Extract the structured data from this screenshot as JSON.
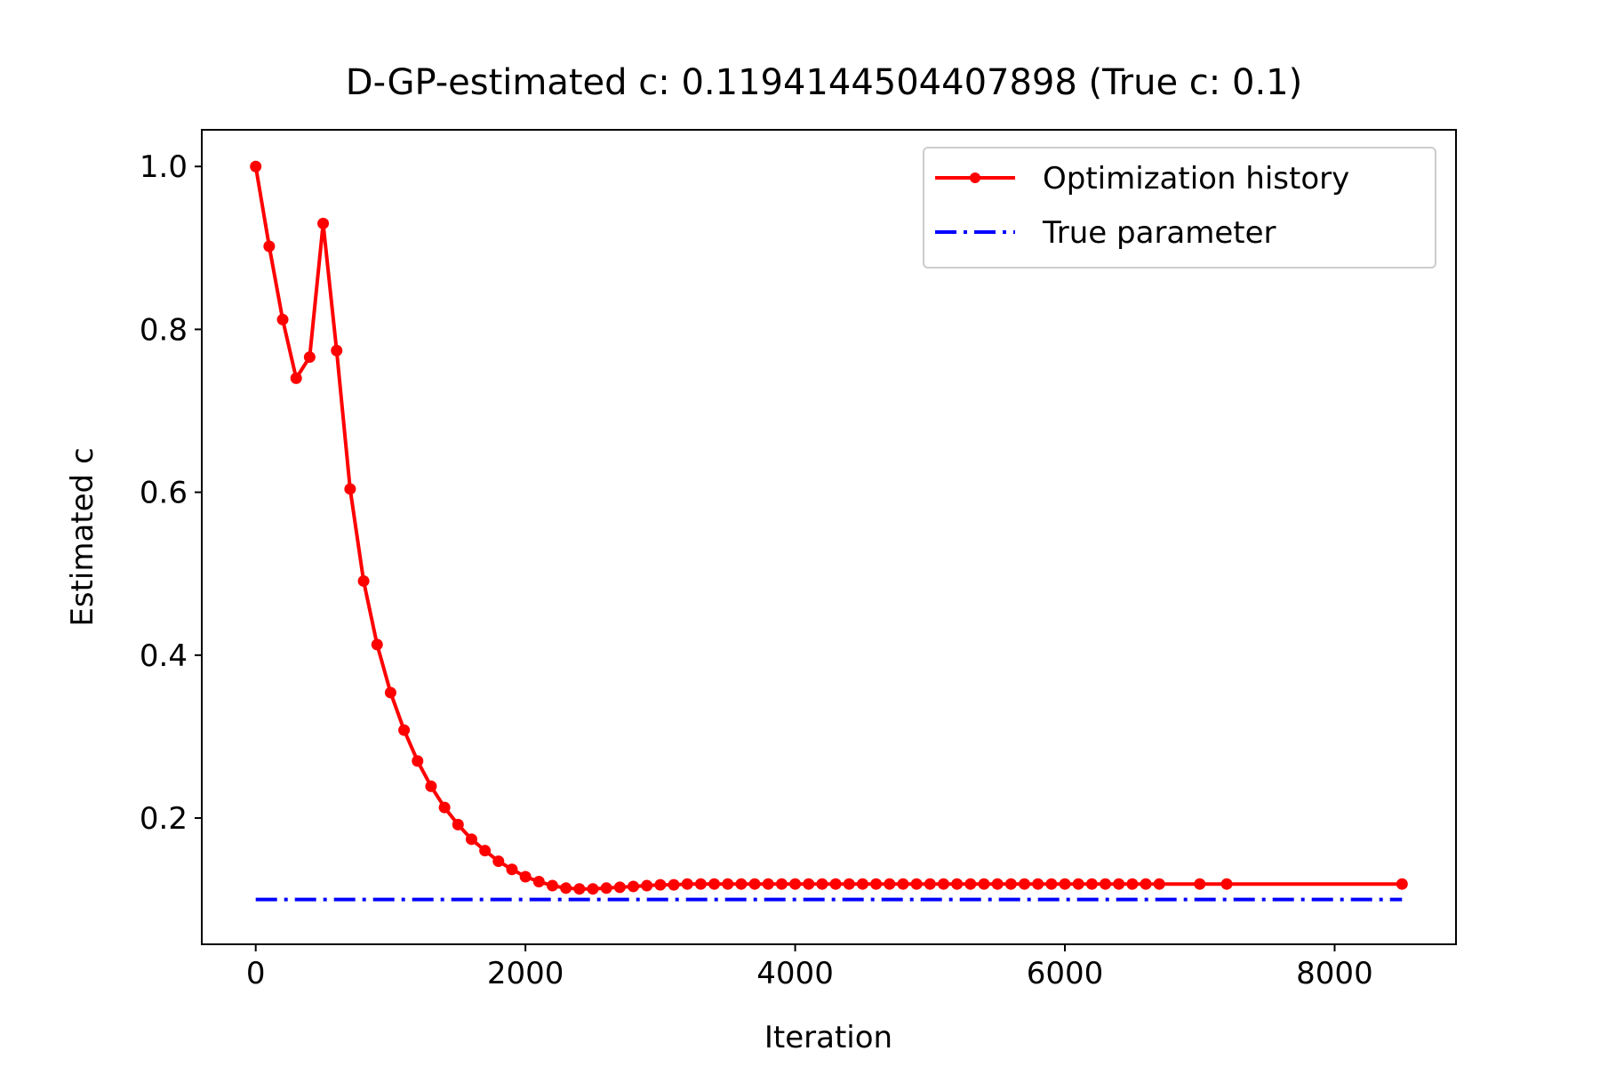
{
  "chart_data": {
    "type": "line",
    "title": "D-GP-estimated c: 0.1194144504407898 (True c: 0.1)",
    "xlabel": "Iteration",
    "ylabel": "Estimated c",
    "xlim": [
      -400,
      8900
    ],
    "ylim": [
      0.045,
      1.045
    ],
    "xticks": [
      0,
      2000,
      4000,
      6000,
      8000
    ],
    "xtick_labels": [
      "0",
      "2000",
      "4000",
      "6000",
      "8000"
    ],
    "yticks": [
      0.2,
      0.4,
      0.6,
      0.8,
      1.0
    ],
    "ytick_labels": [
      "0.2",
      "0.4",
      "0.6",
      "0.8",
      "1.0"
    ],
    "grid": false,
    "legend_position": "top-right",
    "series": [
      {
        "name": "Optimization history",
        "color": "#ff0000",
        "style": "solid line with circle markers",
        "x": [
          0,
          100,
          200,
          300,
          400,
          500,
          600,
          700,
          800,
          900,
          1000,
          1100,
          1200,
          1300,
          1400,
          1500,
          1600,
          1700,
          1800,
          1900,
          2000,
          2100,
          2200,
          2300,
          2400,
          2500,
          2600,
          2700,
          2800,
          2900,
          3000,
          3100,
          3200,
          3300,
          3400,
          3500,
          3600,
          3700,
          3800,
          3900,
          4000,
          4100,
          4200,
          4300,
          4400,
          4500,
          4600,
          4700,
          4800,
          4900,
          5000,
          5100,
          5200,
          5300,
          5400,
          5500,
          5600,
          5700,
          5800,
          5900,
          6000,
          6100,
          6200,
          6300,
          6400,
          6500,
          6600,
          6700,
          7000,
          7200,
          8500
        ],
        "y": [
          1.0,
          0.902,
          0.812,
          0.74,
          0.766,
          0.93,
          0.774,
          0.604,
          0.491,
          0.413,
          0.354,
          0.308,
          0.27,
          0.239,
          0.213,
          0.192,
          0.174,
          0.16,
          0.147,
          0.137,
          0.128,
          0.122,
          0.117,
          0.114,
          0.113,
          0.113,
          0.114,
          0.115,
          0.116,
          0.117,
          0.118,
          0.118,
          0.119,
          0.119,
          0.119,
          0.119,
          0.119,
          0.119,
          0.119,
          0.119,
          0.119,
          0.119,
          0.119,
          0.119,
          0.119,
          0.119,
          0.119,
          0.119,
          0.119,
          0.119,
          0.119,
          0.119,
          0.119,
          0.119,
          0.119,
          0.119,
          0.119,
          0.119,
          0.119,
          0.119,
          0.119,
          0.119,
          0.119,
          0.119,
          0.119,
          0.119,
          0.119,
          0.119,
          0.119,
          0.119,
          0.119
        ]
      },
      {
        "name": "True parameter",
        "color": "#0000ff",
        "style": "dash-dot line",
        "x": [
          0,
          8500
        ],
        "y": [
          0.1,
          0.1
        ]
      }
    ]
  }
}
